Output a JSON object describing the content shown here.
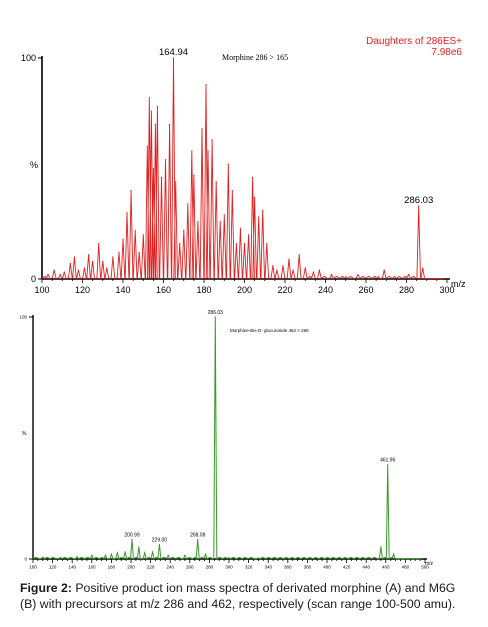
{
  "chart_data": [
    {
      "type": "line",
      "panel": "A",
      "title": "Morphine 286 > 165",
      "header": [
        "Daughters of 286ES+",
        "7.98e6"
      ],
      "xlabel": "m/z",
      "ylabel": "%",
      "xlim": [
        100,
        300
      ],
      "ylim": [
        0,
        100
      ],
      "x_ticks": [
        100,
        120,
        140,
        160,
        180,
        200,
        220,
        240,
        260,
        280,
        300
      ],
      "y_ticks": [
        0,
        100
      ],
      "peak_labels": [
        {
          "x": 164.94,
          "text": "164.94"
        },
        {
          "x": 286.03,
          "text": "286.03"
        }
      ],
      "color": "#e02020",
      "series": [
        {
          "peaks": [
            [
              103,
              2
            ],
            [
              106,
              4
            ],
            [
              109,
              2
            ],
            [
              111,
              3
            ],
            [
              114,
              7
            ],
            [
              116,
              10
            ],
            [
              118,
              4
            ],
            [
              121,
              5
            ],
            [
              123,
              11
            ],
            [
              125,
              8
            ],
            [
              128,
              16
            ],
            [
              130,
              8
            ],
            [
              132,
              5
            ],
            [
              135,
              10
            ],
            [
              138,
              12
            ],
            [
              140,
              18
            ],
            [
              142,
              30
            ],
            [
              144,
              40
            ],
            [
              146,
              22
            ],
            [
              148,
              12
            ],
            [
              150,
              20
            ],
            [
              152,
              60
            ],
            [
              153,
              82
            ],
            [
              154,
              76
            ],
            [
              155,
              50
            ],
            [
              156,
              70
            ],
            [
              157,
              78
            ],
            [
              159,
              46
            ],
            [
              161,
              54
            ],
            [
              163,
              70
            ],
            [
              164.94,
              100
            ],
            [
              166,
              44
            ],
            [
              168,
              16
            ],
            [
              170,
              22
            ],
            [
              172,
              34
            ],
            [
              174,
              58
            ],
            [
              175,
              47
            ],
            [
              177,
              26
            ],
            [
              179,
              68
            ],
            [
              181,
              88
            ],
            [
              182,
              58
            ],
            [
              184,
              63
            ],
            [
              186,
              44
            ],
            [
              188,
              26
            ],
            [
              190,
              29
            ],
            [
              192,
              52
            ],
            [
              194,
              40
            ],
            [
              196,
              16
            ],
            [
              198,
              23
            ],
            [
              200,
              16
            ],
            [
              202,
              20
            ],
            [
              204,
              46
            ],
            [
              205,
              37
            ],
            [
              207,
              28
            ],
            [
              209,
              31
            ],
            [
              211,
              16
            ],
            [
              214,
              6
            ],
            [
              216,
              4
            ],
            [
              219,
              6
            ],
            [
              222,
              9
            ],
            [
              224,
              4
            ],
            [
              227,
              11
            ],
            [
              230,
              5
            ],
            [
              234,
              3
            ],
            [
              237,
              4
            ],
            [
              243,
              2
            ],
            [
              250,
              1
            ],
            [
              256,
              2
            ],
            [
              266,
              1
            ],
            [
              269,
              4
            ],
            [
              274,
              1
            ],
            [
              281,
              2
            ],
            [
              286.03,
              33
            ],
            [
              288,
              5
            ]
          ]
        }
      ]
    },
    {
      "type": "line",
      "panel": "B",
      "title": "Morphine-Bis-D- glucuronide 462 > 286",
      "xlabel": "m/z",
      "ylabel": "%",
      "xlim": [
        100,
        500
      ],
      "ylim": [
        0,
        100
      ],
      "x_ticks": [
        100,
        120,
        140,
        160,
        180,
        200,
        220,
        240,
        260,
        280,
        300,
        320,
        340,
        360,
        380,
        400,
        420,
        440,
        460,
        480,
        500
      ],
      "y_ticks": [
        0,
        100
      ],
      "peak_labels": [
        {
          "x": 200.99,
          "text": "200.99"
        },
        {
          "x": 229.0,
          "text": "229.00"
        },
        {
          "x": 268.08,
          "text": "268.08"
        },
        {
          "x": 286.03,
          "text": "286.03"
        },
        {
          "x": 461.96,
          "text": "461.96"
        }
      ],
      "color": "#3a9a2a",
      "series": [
        {
          "peaks": [
            [
              110,
              0.8
            ],
            [
              128,
              0.6
            ],
            [
              145,
              1
            ],
            [
              160,
              1.5
            ],
            [
              174,
              1.6
            ],
            [
              180,
              2
            ],
            [
              186,
              2.5
            ],
            [
              194,
              3
            ],
            [
              200.99,
              8
            ],
            [
              208,
              5
            ],
            [
              214,
              2.5
            ],
            [
              222,
              3
            ],
            [
              229.0,
              6
            ],
            [
              238,
              1.5
            ],
            [
              255,
              1.5
            ],
            [
              268.08,
              8
            ],
            [
              276,
              2
            ],
            [
              286.03,
              100
            ],
            [
              300,
              0.5
            ],
            [
              330,
              0.4
            ],
            [
              455,
              5
            ],
            [
              461.96,
              39
            ],
            [
              468,
              2
            ]
          ]
        }
      ]
    }
  ],
  "caption": {
    "label": "Figure 2:",
    "text": " Positive product ion mass spectra of derivated morphine (A) and M6G (B) with precursors at m/z 286 and 462, respectively (scan range 100-500 amu)."
  }
}
